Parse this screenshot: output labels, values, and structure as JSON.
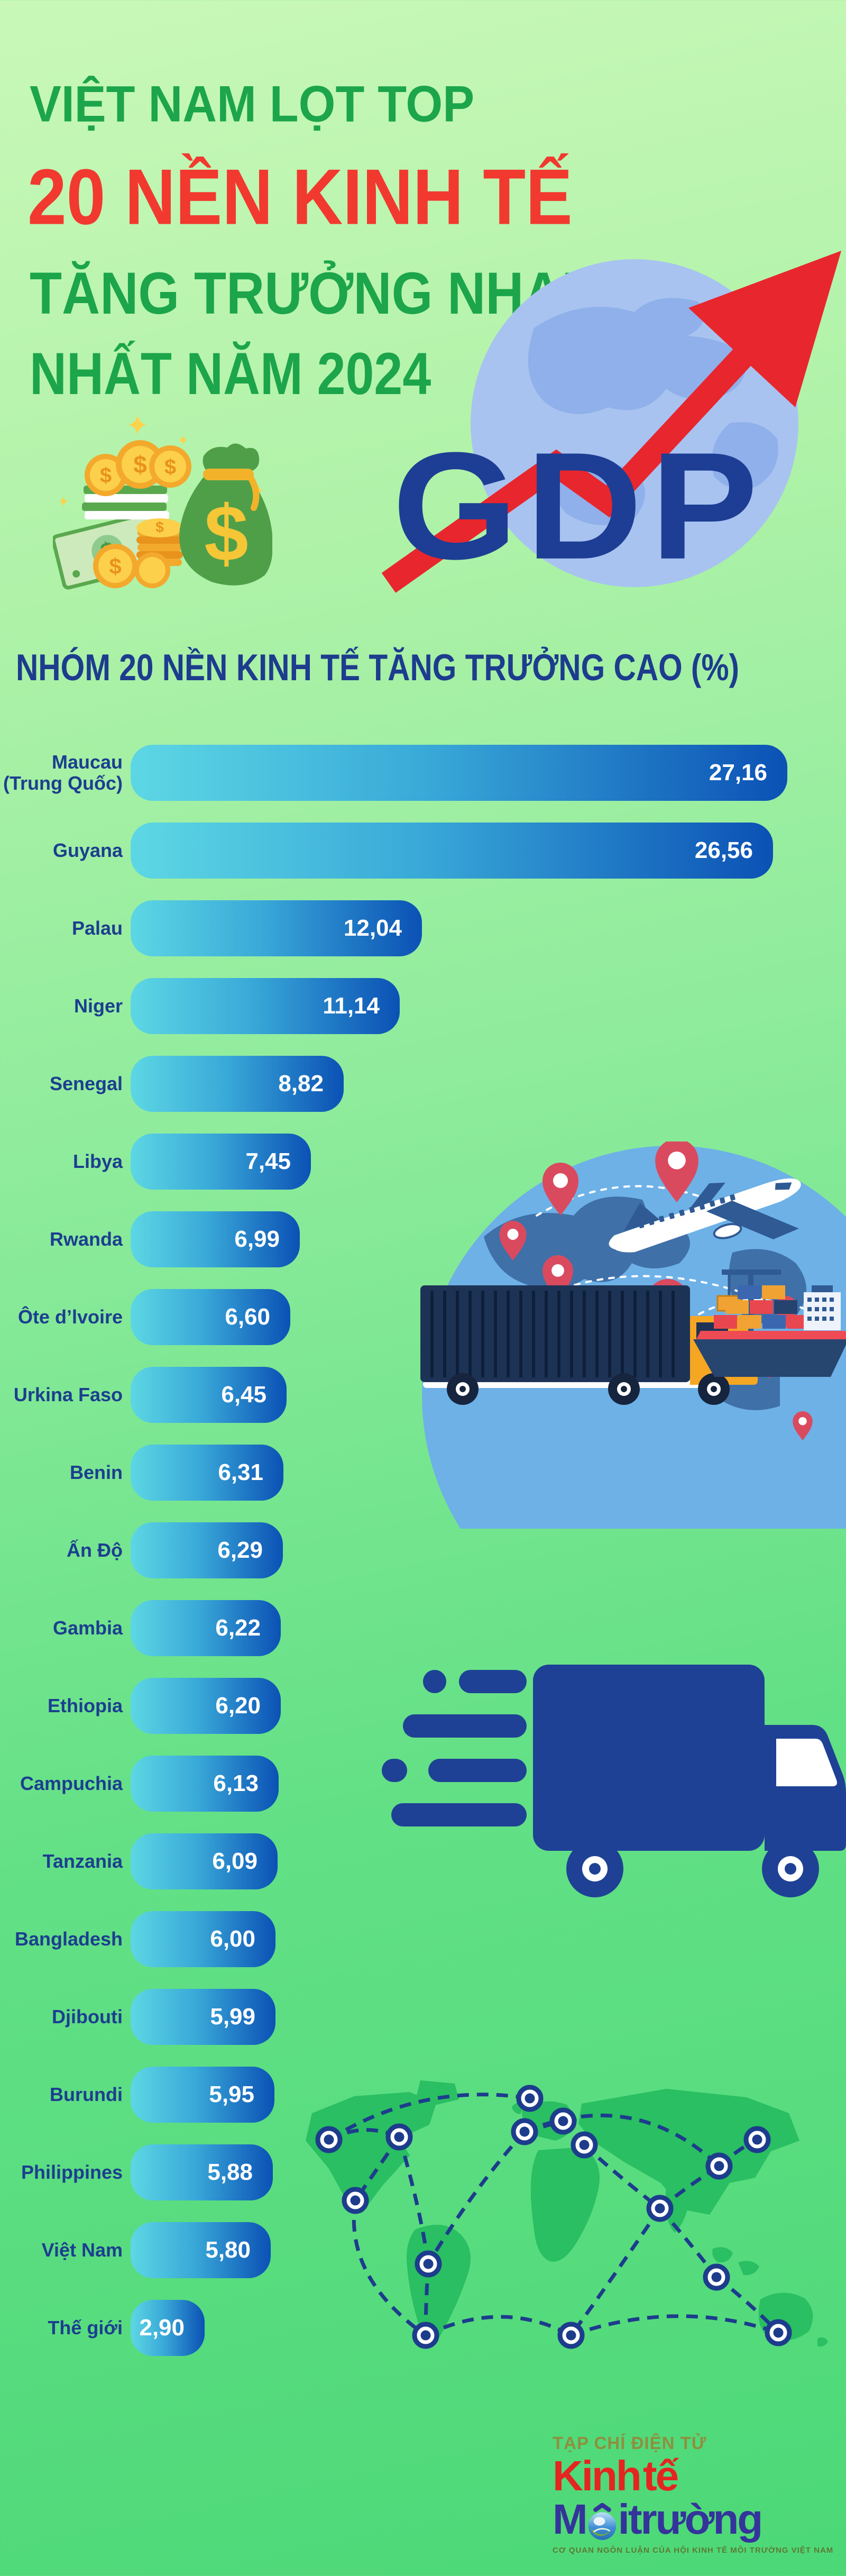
{
  "header": {
    "title_line1": "VIỆT NAM LỌT TOP",
    "title_line2": "20 NỀN KINH TẾ",
    "title_line3": "TĂNG TRƯỞNG NHANH",
    "title_line4": "NHẤT NĂM 2024",
    "gdp_label": "GDP"
  },
  "chart_data": {
    "type": "bar",
    "orientation": "horizontal",
    "title": "NHÓM 20 NỀN KINH TẾ TĂNG TRƯỞNG CAO (%)",
    "unit": "%",
    "xmax": 27.16,
    "grid": false,
    "legend": "none",
    "value_label_position": "inside-right",
    "bar_color_gradient": [
      "#5dd7e4",
      "#0b51b5"
    ],
    "categories": [
      "Maucau (Trung Quốc)",
      "Guyana",
      "Palau",
      "Niger",
      "Senegal",
      "Libya",
      "Rwanda",
      "Ôte d’lvoire",
      "Urkina Faso",
      "Benin",
      "Ấn Độ",
      "Gambia",
      "Ethiopia",
      "Campuchia",
      "Tanzania",
      "Bangladesh",
      "Djibouti",
      "Burundi",
      "Philippines",
      "Việt Nam",
      "Thế giới"
    ],
    "values": [
      27.16,
      26.56,
      12.04,
      11.14,
      8.82,
      7.45,
      6.99,
      6.6,
      6.45,
      6.31,
      6.29,
      6.22,
      6.2,
      6.13,
      6.09,
      6.0,
      5.99,
      5.95,
      5.88,
      5.8,
      2.9
    ],
    "rows": [
      {
        "label": "Maucau\n(Trung Quốc)",
        "value_display": "27,16"
      },
      {
        "label": "Guyana",
        "value_display": "26,56"
      },
      {
        "label": "Palau",
        "value_display": "12,04"
      },
      {
        "label": "Niger",
        "value_display": "11,14"
      },
      {
        "label": "Senegal",
        "value_display": "8,82"
      },
      {
        "label": "Libya",
        "value_display": "7,45"
      },
      {
        "label": "Rwanda",
        "value_display": "6,99"
      },
      {
        "label": "Ôte d’lvoire",
        "value_display": "6,60"
      },
      {
        "label": "Urkina Faso",
        "value_display": "6,45"
      },
      {
        "label": "Benin",
        "value_display": "6,31"
      },
      {
        "label": "Ấn Độ",
        "value_display": "6,29"
      },
      {
        "label": "Gambia",
        "value_display": "6,22"
      },
      {
        "label": "Ethiopia",
        "value_display": "6,20"
      },
      {
        "label": "Campuchia",
        "value_display": "6,13"
      },
      {
        "label": "Tanzania",
        "value_display": "6,09"
      },
      {
        "label": "Bangladesh",
        "value_display": "6,00"
      },
      {
        "label": "Djibouti",
        "value_display": "5,99"
      },
      {
        "label": "Burundi",
        "value_display": "5,95"
      },
      {
        "label": "Philippines",
        "value_display": "5,88"
      },
      {
        "label": "Việt Nam",
        "value_display": "5,80"
      },
      {
        "label": "Thế giới",
        "value_display": "2,90"
      }
    ]
  },
  "footer_logo": {
    "tagline_top": "TẠP CHÍ ĐIỆN TỬ",
    "brand_line1": "Kinh tế",
    "brand_line2_prefix": "M",
    "brand_line2_suffix": "itrường",
    "brand_line2_full": "Môi trường",
    "tagline_bottom": "CƠ QUAN NGÔN LUẬN CỦA HỘI KINH TẾ MÔI TRƯỜNG VIỆT NAM"
  },
  "colors": {
    "title_green": "#1ca54b",
    "title_red": "#f2392f",
    "navy": "#1c3e8f",
    "bar_start": "#5dd7e4",
    "bar_end": "#0b51b5",
    "bg_top": "#c9f8b8",
    "bg_bottom": "#4cd877"
  }
}
